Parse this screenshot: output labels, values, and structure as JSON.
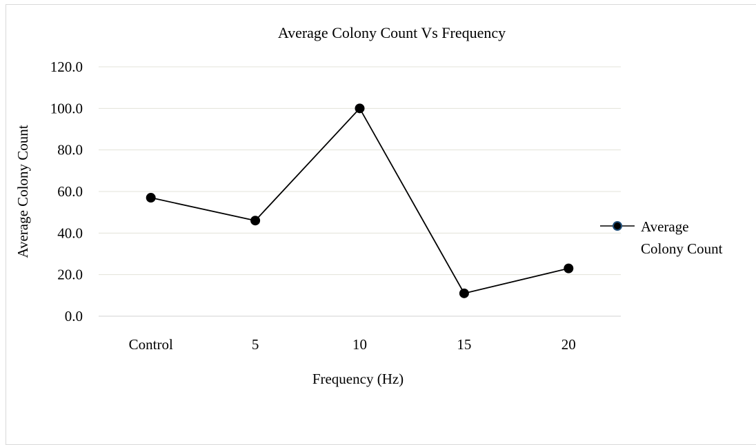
{
  "chart_data": {
    "type": "line",
    "title": "Average Colony Count Vs Frequency",
    "xlabel": "Frequency (Hz)",
    "ylabel": "Average Colony Count",
    "categories": [
      "Control",
      "5",
      "10",
      "15",
      "20"
    ],
    "series": [
      {
        "name": "Average Colony Count",
        "values": [
          57.0,
          46.0,
          100.0,
          11.0,
          23.0
        ],
        "color": "#000000",
        "marker": "circle"
      }
    ],
    "ylim": [
      0,
      120
    ],
    "yticks": [
      "0.0",
      "20.0",
      "40.0",
      "60.0",
      "80.0",
      "100.0",
      "120.0"
    ],
    "grid": "horizontal",
    "gridline_color": "#e3e3d8",
    "legend_position": "right",
    "legend_lines": [
      "Average",
      "Colony Count"
    ],
    "legend_marker_color": "#1f4e79"
  }
}
